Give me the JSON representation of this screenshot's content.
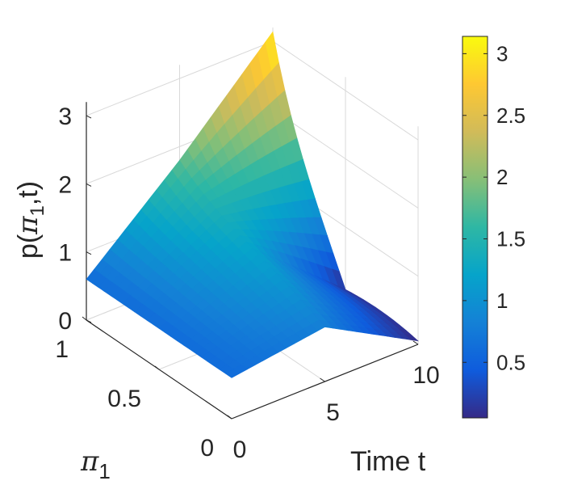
{
  "chart_data": {
    "type": "surface",
    "title": "",
    "zlabel": "p(π₁,t)",
    "zlabel_parts": {
      "base": "p(",
      "sym": "π",
      "sub": "1",
      "tail": ",t)"
    },
    "ylabel": "Time t",
    "xlabel_parts": {
      "sym": "π",
      "sub": "1"
    },
    "x_axis": {
      "name": "π1",
      "range": [
        0,
        1
      ],
      "ticks": [
        {
          "v": 0,
          "label": "0"
        },
        {
          "v": 0.5,
          "label": "0.5"
        },
        {
          "v": 1,
          "label": "1"
        }
      ]
    },
    "t_axis": {
      "name": "Time t",
      "range": [
        0,
        10
      ],
      "ticks": [
        {
          "v": 0,
          "label": "0"
        },
        {
          "v": 5,
          "label": "5"
        },
        {
          "v": 10,
          "label": "10"
        }
      ]
    },
    "z_axis": {
      "range": [
        0,
        3.2
      ],
      "ticks": [
        {
          "v": 0,
          "label": "0"
        },
        {
          "v": 1,
          "label": "1"
        },
        {
          "v": 2,
          "label": "2"
        },
        {
          "v": 3,
          "label": "3"
        }
      ]
    },
    "colorbar": {
      "range": [
        0.05,
        3.14
      ],
      "colormap": "parula",
      "ticks": [
        {
          "v": 0.5,
          "label": "0.5"
        },
        {
          "v": 1,
          "label": "1"
        },
        {
          "v": 1.5,
          "label": "1.5"
        },
        {
          "v": 2,
          "label": "2"
        },
        {
          "v": 2.5,
          "label": "2.5"
        },
        {
          "v": 3,
          "label": "3"
        }
      ]
    },
    "parula_stops": [
      "#352a87",
      "#0f5cdd",
      "#1481d6",
      "#06a4ca",
      "#2eb7a4",
      "#87bf77",
      "#d1bb59",
      "#fec832",
      "#f9fb0e"
    ],
    "grid": true,
    "surface_values": {
      "pi1": [
        0,
        0.5,
        1
      ],
      "t": [
        0,
        5,
        10
      ],
      "z": [
        [
          0.6,
          0.6,
          0.6
        ],
        [
          0.8,
          1.3,
          1.8
        ],
        [
          0.05,
          0.3,
          3.14
        ]
      ]
    }
  }
}
